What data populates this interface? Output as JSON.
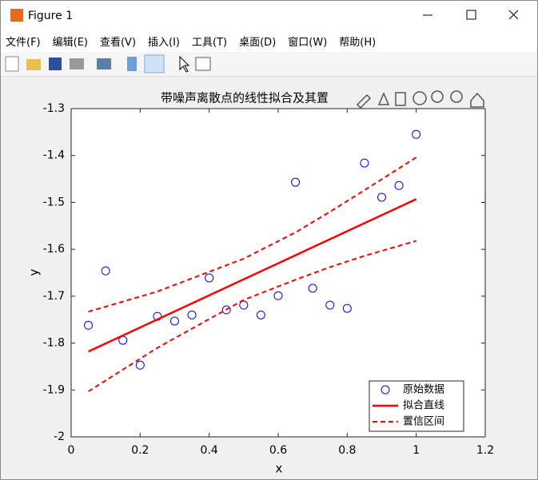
{
  "window": {
    "title": "Figure 1",
    "menu": [
      "文件(F)",
      "编辑(E)",
      "查看(V)",
      "插入(I)",
      "工具(T)",
      "桌面(D)",
      "窗口(W)",
      "帮助(H)"
    ]
  },
  "chart_data": {
    "type": "scatter",
    "title": "带噪声离散点的线性拟合及其置",
    "xlabel": "x",
    "ylabel": "y",
    "xlim": [
      0,
      1.2
    ],
    "ylim": [
      -2,
      -1.3
    ],
    "xticks": [
      0,
      0.2,
      0.4,
      0.6,
      0.8,
      1,
      1.2
    ],
    "yticks": [
      -2,
      -1.9,
      -1.8,
      -1.7,
      -1.6,
      -1.5,
      -1.4,
      -1.3
    ],
    "legend": "lower right",
    "series": [
      {
        "name": "原始数据",
        "color": "#0000ff",
        "style": "markers",
        "x": [
          0.05,
          0.1,
          0.15,
          0.2,
          0.25,
          0.3,
          0.35,
          0.4,
          0.45,
          0.5,
          0.55,
          0.6,
          0.65,
          0.7,
          0.75,
          0.8,
          0.85,
          0.9,
          0.95,
          1
        ],
        "values": [
          -1.762,
          -1.646,
          -1.794,
          -1.847,
          -1.743,
          -1.753,
          -1.74,
          -1.661,
          -1.729,
          -1.719,
          -1.74,
          -1.699,
          -1.457,
          -1.683,
          -1.719,
          -1.726,
          -1.416,
          -1.489,
          -1.464,
          -1.355
        ]
      },
      {
        "name": "拟合直线",
        "color": "#ff0000",
        "style": "solid",
        "x": [
          0.05,
          1
        ],
        "values": [
          -1.818,
          -1.493
        ]
      },
      {
        "name": "置信区间",
        "color": "#ff0000",
        "style": "dashed",
        "x": [
          0.05,
          0.25,
          0.5,
          0.65,
          0.75,
          0.85,
          1
        ],
        "values": [
          -1.733,
          -1.69,
          -1.62,
          -1.564,
          -1.52,
          -1.474,
          -1.404
        ]
      },
      {
        "color": "#ff0000",
        "style": "dashed",
        "x": [
          0.05,
          0.25,
          0.5,
          0.65,
          0.75,
          0.85,
          1
        ],
        "values": [
          -1.903,
          -1.81,
          -1.708,
          -1.665,
          -1.638,
          -1.614,
          -1.582
        ]
      }
    ]
  }
}
